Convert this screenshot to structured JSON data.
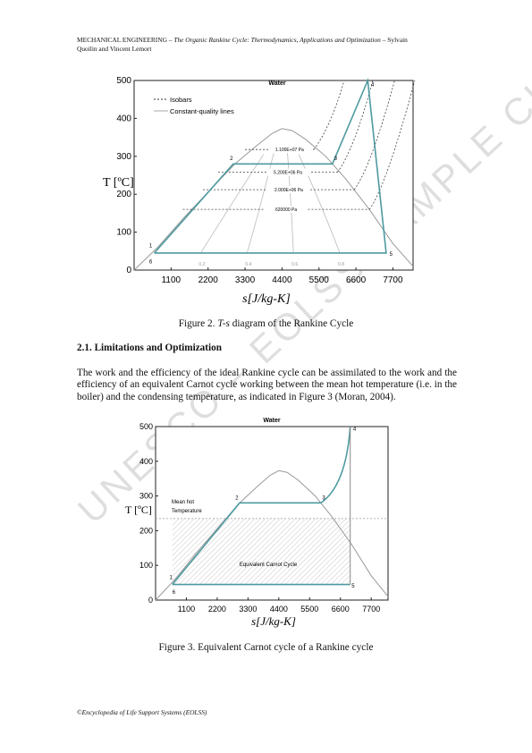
{
  "header": {
    "prefix": "MECHANICAL ENGINEERING",
    "dash1": " – ",
    "italic": "The Organic Rankine Cycle: Thermodynamics, Applications and Optimization",
    "dash2": " – Sylvain",
    "line2": "Quoilin and Vincent Lemort"
  },
  "watermark": "UNESCO – EOLSS SAMPLE CHAPTERS",
  "figure1": {
    "caption_prefix": "Figure 2. ",
    "caption_italic": "T-s",
    "caption_suffix": " diagram of the Rankine Cycle",
    "chart_data": {
      "type": "line",
      "title": "Water",
      "ylabel": "T [ºC]",
      "xlabel": "s[J/kg-K]",
      "xticks": [
        1100,
        2200,
        3300,
        4400,
        5500,
        6600,
        7700
      ],
      "yticks": [
        0,
        100,
        200,
        300,
        400,
        500
      ],
      "xlim": [
        0,
        8300
      ],
      "ylim": [
        0,
        500
      ],
      "legend": [
        "Isobars",
        "Constant-quality lines"
      ],
      "legend_position": "top-left",
      "isobar_labels": [
        "1.100E+07 Pa",
        "5.200E+06 Pa",
        "2.000E+06 Pa",
        "620000 Pa"
      ],
      "quality_labels": [
        "0.2",
        "0.4",
        "0.6",
        "0.8"
      ],
      "point_labels": [
        "1",
        "2",
        "3",
        "4",
        "5",
        "6"
      ],
      "saturation_dome": {
        "s": [
          0,
          700,
          1500,
          2300,
          3000,
          3600,
          4100,
          4400,
          4700,
          5100,
          5700,
          6300,
          7000,
          7700,
          8300
        ],
        "T": [
          0,
          60,
          140,
          215,
          280,
          325,
          360,
          373,
          368,
          345,
          300,
          240,
          160,
          70,
          10
        ]
      },
      "cycle": {
        "s": [
          600,
          2950,
          5900,
          6950,
          7500,
          600,
          600
        ],
        "T": [
          45,
          280,
          280,
          500,
          45,
          45,
          45
        ]
      }
    }
  },
  "section": {
    "title": "2.1. Limitations and Optimization"
  },
  "paragraph": "The work and the efficiency of the ideal Rankine cycle can be assimilated to the work and the efficiency of an equivalent Carnot cycle working between the mean hot temperature (i.e. in the boiler) and the condensing temperature, as indicated in Figure 3 (Moran, 2004).",
  "figure2": {
    "caption": "Figure 3. Equivalent Carnot cycle of a Rankine cycle",
    "chart_data": {
      "type": "line",
      "title": "Water",
      "ylabel": "T [ºC]",
      "xlabel": "s[J/kg-K]",
      "xticks": [
        1100,
        2200,
        3300,
        4400,
        5500,
        6600,
        7700
      ],
      "yticks": [
        0,
        100,
        200,
        300,
        400,
        500
      ],
      "xlim": [
        0,
        8300
      ],
      "ylim": [
        0,
        500
      ],
      "annotation_mean_hot": "Mean hot\nTemperature",
      "annotation_carnot": "Equivalent Carnot Cycle",
      "mean_hot_temperature": 235,
      "point_labels": [
        "1",
        "2",
        "3",
        "4",
        "5",
        "6"
      ],
      "cycle": {
        "s": [
          600,
          3000,
          5900,
          6950,
          6950,
          600,
          600
        ],
        "T": [
          45,
          280,
          280,
          500,
          45,
          45,
          45
        ]
      }
    }
  },
  "footer": "©Encyclopedia of Life Support Systems (EOLSS)"
}
